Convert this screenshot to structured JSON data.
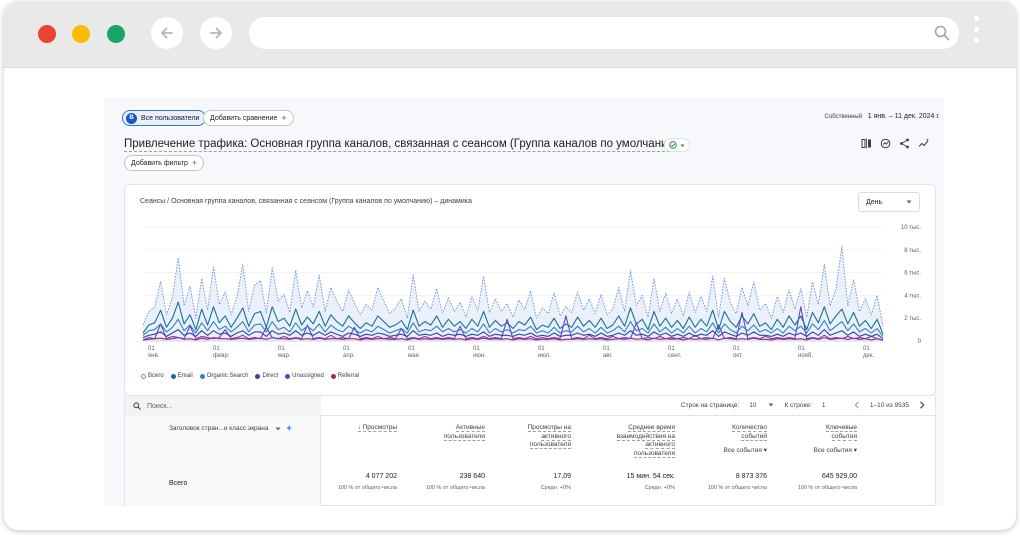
{
  "header": {
    "segment_badge": "B",
    "segment_label": "Все пользователи",
    "compare_label": "Добавить сравнение",
    "date_prefix": "Собственный",
    "date_range": "1 янв. – 11 дек. 2024 г."
  },
  "report": {
    "title": "Привлечение трафика: Основная группа каналов, связанная с сеансом (Группа каналов по умолчанию)",
    "filter_label": "Добавить фильтр"
  },
  "chart_card": {
    "title": "Сеансы / Основная группа каналов, связанная с сеансом (Группа каналов по умолчанию) – динамика",
    "granularity": "День"
  },
  "chart_data": {
    "type": "line",
    "title": "Сеансы / Основная группа каналов, связанная с сеансом (Группа каналов по умолчанию) – динамика",
    "x_tick_labels": [
      [
        "01",
        "янв."
      ],
      [
        "01",
        "февр."
      ],
      [
        "01",
        "мар."
      ],
      [
        "01",
        "апр."
      ],
      [
        "01",
        "мая"
      ],
      [
        "01",
        "июн."
      ],
      [
        "01",
        "июл."
      ],
      [
        "01",
        "авг."
      ],
      [
        "01",
        "сент."
      ],
      [
        "01",
        "окт."
      ],
      [
        "01",
        "нояб."
      ],
      [
        "01",
        "дек."
      ]
    ],
    "y_tick_labels": [
      "10 тыс.",
      "8 тыс.",
      "6 тыс.",
      "4 тыс.",
      "2 тыс.",
      "0"
    ],
    "y_ticks": [
      10000,
      8000,
      6000,
      4000,
      2000,
      0
    ],
    "ylim": [
      0,
      10000
    ],
    "x_range": [
      "2024-01-01",
      "2024-12-11"
    ],
    "legend_position": "bottom-left",
    "series": [
      {
        "name": "Всего",
        "color": "#6b8fd6",
        "style": "dashed",
        "fill": "#d9e6f8",
        "values": [
          1400,
          2600,
          3000,
          5200,
          2300,
          3800,
          7300,
          3100,
          4800,
          2000,
          5500,
          2700,
          6500,
          3200,
          4300,
          2300,
          3900,
          6700,
          2600,
          4900,
          5300,
          2400,
          6400,
          3500,
          4100,
          2500,
          6200,
          2900,
          4400,
          3000,
          5800,
          2600,
          4700,
          3500,
          2600,
          4500,
          3300,
          2300,
          3200,
          2700,
          4700,
          3500,
          2400,
          2900,
          3700,
          2000,
          5800,
          2600,
          3500,
          2800,
          4600,
          2400,
          3800,
          2600,
          3400,
          2100,
          3900,
          2700,
          5700,
          2500,
          3700,
          2600,
          3300,
          2100,
          3600,
          2800,
          4400,
          2000,
          2900,
          2400,
          4200,
          2200,
          3000,
          2500,
          4300,
          2700,
          3700,
          2400,
          4100,
          2300,
          2800,
          4700,
          2600,
          6200,
          3100,
          4000,
          2100,
          5500,
          2600,
          4200,
          2400,
          3700,
          2200,
          4300,
          2500,
          3900,
          2600,
          5700,
          2100,
          5500,
          3400,
          2400,
          4700,
          3100,
          5200,
          2700,
          3300,
          2000,
          3900,
          2500,
          4500,
          2800,
          4600,
          2100,
          5200,
          3200,
          6700,
          3100,
          4600,
          8300,
          3100,
          5400,
          2600,
          3700,
          2300,
          4000,
          1300
        ]
      },
      {
        "name": "Email",
        "color": "#1a6d9e",
        "style": "solid",
        "values": [
          700,
          1400,
          1600,
          2700,
          1200,
          2000,
          3400,
          1500,
          2300,
          1000,
          2800,
          1400,
          3000,
          1600,
          2200,
          1200,
          2000,
          2900,
          1300,
          2400,
          2600,
          1200,
          3000,
          1700,
          2000,
          1300,
          2800,
          1400,
          2100,
          1500,
          2600,
          1300,
          2300,
          1700,
          1300,
          2200,
          1600,
          1100,
          1600,
          1300,
          2200,
          1700,
          1200,
          1400,
          1800,
          1000,
          2700,
          1300,
          1700,
          1400,
          2200,
          1200,
          1900,
          1300,
          1700,
          1100,
          1900,
          1300,
          2600,
          1200,
          1800,
          1300,
          1600,
          1100,
          1700,
          1400,
          2100,
          1000,
          1400,
          1200,
          2000,
          1100,
          1500,
          1200,
          2100,
          1300,
          1800,
          1200,
          2000,
          1100,
          1400,
          2200,
          1300,
          2900,
          1500,
          1900,
          1000,
          2600,
          1300,
          2000,
          1200,
          1800,
          1100,
          2100,
          1200,
          1900,
          1300,
          2700,
          1000,
          2600,
          1700,
          1200,
          2200,
          1500,
          2400,
          1300,
          1600,
          1000,
          1900,
          1200,
          2200,
          1400,
          2200,
          1000,
          2500,
          1600,
          3000,
          1500,
          2200,
          2800,
          1500,
          2500,
          1300,
          1800,
          1100,
          1900,
          600
        ]
      },
      {
        "name": "Organic Search",
        "color": "#2a83c3",
        "style": "solid",
        "values": [
          500,
          900,
          1000,
          1500,
          800,
          1200,
          1900,
          900,
          1400,
          700,
          1600,
          900,
          1700,
          1000,
          1300,
          800,
          1200,
          1700,
          800,
          1400,
          1500,
          800,
          1700,
          1000,
          1200,
          800,
          1600,
          900,
          1300,
          900,
          1500,
          800,
          1400,
          1000,
          800,
          1300,
          1000,
          700,
          1000,
          800,
          1300,
          1000,
          700,
          900,
          1100,
          700,
          1600,
          800,
          1000,
          900,
          1300,
          800,
          1100,
          800,
          1000,
          700,
          1100,
          800,
          1500,
          700,
          1100,
          800,
          1000,
          700,
          1000,
          900,
          1300,
          700,
          900,
          700,
          1200,
          700,
          900,
          800,
          1300,
          800,
          1100,
          700,
          1200,
          700,
          900,
          1300,
          800,
          1700,
          900,
          1100,
          700,
          1500,
          800,
          1200,
          700,
          1100,
          700,
          1300,
          700,
          1100,
          800,
          1600,
          700,
          1500,
          1000,
          700,
          1300,
          900,
          1400,
          800,
          1000,
          700,
          1100,
          700,
          1300,
          900,
          1300,
          700,
          1500,
          1000,
          1800,
          900,
          1300,
          1700,
          900,
          1500,
          800,
          1100,
          700,
          1100,
          400
        ]
      },
      {
        "name": "Direct",
        "color": "#3b3fa0",
        "style": "solid",
        "values": [
          300,
          500,
          600,
          800,
          400,
          700,
          1000,
          500,
          700,
          400,
          900,
          500,
          900,
          600,
          700,
          400,
          700,
          900,
          500,
          800,
          800,
          400,
          900,
          600,
          700,
          500,
          900,
          500,
          700,
          500,
          800,
          500,
          800,
          600,
          400,
          700,
          600,
          400,
          600,
          500,
          700,
          600,
          400,
          500,
          600,
          400,
          900,
          500,
          600,
          500,
          700,
          400,
          600,
          500,
          600,
          400,
          600,
          500,
          800,
          400,
          600,
          500,
          500,
          400,
          600,
          500,
          700,
          400,
          500,
          400,
          700,
          400,
          500,
          500,
          700,
          500,
          600,
          400,
          700,
          400,
          500,
          700,
          500,
          900,
          500,
          600,
          400,
          800,
          500,
          700,
          400,
          600,
          400,
          700,
          400,
          600,
          500,
          900,
          400,
          800,
          600,
          400,
          700,
          500,
          800,
          500,
          500,
          400,
          600,
          400,
          700,
          500,
          700,
          400,
          800,
          500,
          1000,
          500,
          700,
          900,
          500,
          800,
          400,
          600,
          400,
          600,
          200
        ]
      },
      {
        "name": "Unassigned",
        "color": "#6e3bc7",
        "style": "solid",
        "values": [
          100,
          300,
          200,
          1500,
          200,
          400,
          300,
          200,
          1300,
          200,
          400,
          300,
          200,
          300,
          1000,
          200,
          300,
          500,
          200,
          300,
          200,
          1200,
          300,
          200,
          400,
          200,
          300,
          200,
          1400,
          200,
          300,
          200,
          500,
          200,
          300,
          200,
          1200,
          200,
          300,
          200,
          400,
          200,
          300,
          200,
          1100,
          200,
          300,
          200,
          400,
          200,
          300,
          200,
          300,
          200,
          1300,
          200,
          300,
          200,
          400,
          200,
          300,
          200,
          1900,
          200,
          300,
          200,
          400,
          200,
          300,
          200,
          300,
          200,
          2200,
          200,
          300,
          200,
          500,
          200,
          300,
          200,
          400,
          200,
          300,
          200,
          1600,
          200,
          300,
          200,
          400,
          200,
          300,
          200,
          300,
          200,
          500,
          200,
          300,
          200,
          1400,
          200,
          300,
          200,
          2500,
          200,
          300,
          200,
          400,
          200,
          300,
          200,
          300,
          200,
          3000,
          200,
          300,
          200,
          500,
          200,
          300,
          200,
          400,
          200,
          300,
          200,
          400,
          200,
          100
        ]
      },
      {
        "name": "Referral",
        "color": "#a7226e",
        "style": "solid",
        "values": [
          100,
          150,
          200,
          250,
          150,
          200,
          300,
          150,
          200,
          100,
          250,
          150,
          300,
          200,
          200,
          150,
          200,
          250,
          150,
          200,
          250,
          150,
          300,
          200,
          200,
          150,
          250,
          150,
          200,
          150,
          250,
          150,
          200,
          200,
          150,
          200,
          200,
          100,
          200,
          150,
          200,
          200,
          150,
          150,
          200,
          100,
          250,
          150,
          200,
          150,
          200,
          150,
          200,
          150,
          200,
          100,
          200,
          150,
          250,
          150,
          200,
          150,
          200,
          100,
          200,
          150,
          200,
          100,
          150,
          150,
          200,
          100,
          150,
          150,
          200,
          150,
          200,
          150,
          200,
          100,
          150,
          200,
          150,
          250,
          150,
          200,
          100,
          250,
          150,
          200,
          150,
          200,
          100,
          200,
          150,
          200,
          150,
          250,
          100,
          250,
          200,
          150,
          200,
          150,
          250,
          150,
          150,
          100,
          200,
          150,
          200,
          150,
          200,
          100,
          250,
          150,
          300,
          150,
          200,
          250,
          150,
          250,
          150,
          200,
          100,
          200,
          50
        ]
      }
    ]
  },
  "table": {
    "search_placeholder": "Поиск...",
    "rows_per_page_label": "Строк на странице:",
    "rows_per_page": "10",
    "goto_row_label": "К строке:",
    "goto_row": "1",
    "page_info": "1–10 из 9535",
    "dimension_header": "Заголовок стран...и класс экрана",
    "total_label": "Всего",
    "columns": [
      {
        "header": [
          "Просмотры"
        ],
        "sort": "↓",
        "value": "4 077 202",
        "pct": "100 % от общего числа",
        "select": ""
      },
      {
        "header": [
          "Активные",
          "пользователи"
        ],
        "sort": "",
        "value": "238 640",
        "pct": "100 % от общего числа",
        "select": ""
      },
      {
        "header": [
          "Просмотры на",
          "активного",
          "пользователя"
        ],
        "sort": "",
        "value": "17,09",
        "pct": "Средн. +0%",
        "select": ""
      },
      {
        "header": [
          "Среднее время",
          "взаимодействия на",
          "активного",
          "пользователя"
        ],
        "sort": "",
        "value": "15 мин. 54 сек.",
        "pct": "Средн. +0%",
        "select": ""
      },
      {
        "header": [
          "Количество",
          "событий"
        ],
        "sort": "",
        "value": "8 873 376",
        "pct": "100 % от общего числа",
        "select": "Все события"
      },
      {
        "header": [
          "Ключевые",
          "события"
        ],
        "sort": "",
        "value": "645 929,00",
        "pct": "100 % от общего числа",
        "select": "Все события"
      }
    ]
  }
}
